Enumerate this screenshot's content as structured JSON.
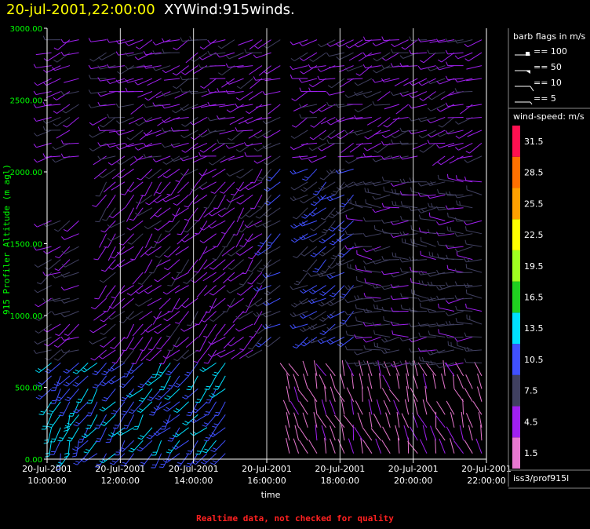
{
  "header": {
    "datetime": "20-jul-2001,22:00:00",
    "product": "XYWind:915winds."
  },
  "warning": "Realtime data, not checked for quality",
  "legend": {
    "barb_title": "barb flags in m/s",
    "barb_labels": [
      "== 100",
      "== 50",
      "== 10",
      "== 5"
    ],
    "speed_title": "wind-speed: m/s",
    "color_bins": [
      {
        "label": "1.5",
        "color": "#e878d0"
      },
      {
        "label": "4.5",
        "color": "#a020f0"
      },
      {
        "label": "7.5",
        "color": "#404060"
      },
      {
        "label": "10.5",
        "color": "#4050ff"
      },
      {
        "label": "13.5",
        "color": "#00e0ff"
      },
      {
        "label": "16.5",
        "color": "#20d020"
      },
      {
        "label": "19.5",
        "color": "#a0ff20"
      },
      {
        "label": "22.5",
        "color": "#ffff00"
      },
      {
        "label": "25.5",
        "color": "#ffa000"
      },
      {
        "label": "28.5",
        "color": "#ff7000"
      },
      {
        "label": "31.5",
        "color": "#ff1050"
      }
    ],
    "station": "iss3/prof915l"
  },
  "chart_data": {
    "type": "scatter",
    "subtype": "wind-barb time-height",
    "xlabel": "time",
    "ylabel": "915 Profiler Altitude (m agl)",
    "x_ticks": [
      {
        "date": "20-Jul-2001",
        "time": "10:00:00",
        "hour": 10
      },
      {
        "date": "20-Jul-2001",
        "time": "12:00:00",
        "hour": 12
      },
      {
        "date": "20-Jul-2001",
        "time": "14:00:00",
        "hour": 14
      },
      {
        "date": "20-Jul-2001",
        "time": "16:00:00",
        "hour": 16
      },
      {
        "date": "20-Jul-2001",
        "time": "18:00:00",
        "hour": 18
      },
      {
        "date": "20-Jul-2001",
        "time": "20:00:00",
        "hour": 20
      },
      {
        "date": "20-Jul-2001",
        "time": "22:00:00",
        "hour": 22
      }
    ],
    "xlim": [
      10,
      22
    ],
    "y_ticks": [
      "0.00",
      "500.00",
      "1000.00",
      "1500.00",
      "2000.00",
      "2500.00",
      "3000.00"
    ],
    "ylim": [
      0,
      3000
    ],
    "grid_x": true,
    "grid_y": false,
    "wind_field": [
      {
        "from_hour": 10.0,
        "to_hour": 15.0,
        "from_alt": 0,
        "to_alt": 700,
        "speed": 11,
        "dir": 220
      },
      {
        "from_hour": 10.0,
        "to_hour": 11.0,
        "from_alt": 0,
        "to_alt": 400,
        "speed": 13,
        "dir": 200
      },
      {
        "from_hour": 10.0,
        "to_hour": 11.0,
        "from_alt": 700,
        "to_alt": 1700,
        "speed": 6,
        "dir": 240
      },
      {
        "from_hour": 11.5,
        "to_hour": 16.0,
        "from_alt": 700,
        "to_alt": 2400,
        "speed": 5,
        "dir": 225
      },
      {
        "from_hour": 16.0,
        "to_hour": 18.5,
        "from_alt": 800,
        "to_alt": 2100,
        "speed": 9,
        "dir": 235
      },
      {
        "from_hour": 16.5,
        "to_hour": 22.0,
        "from_alt": 0,
        "to_alt": 600,
        "speed": 2,
        "dir": 340
      },
      {
        "from_hour": 18.5,
        "to_hour": 22.0,
        "from_alt": 600,
        "to_alt": 2000,
        "speed": 7,
        "dir": 270
      },
      {
        "from_hour": 10.0,
        "to_hour": 22.0,
        "from_alt": 2100,
        "to_alt": 3000,
        "speed": 5,
        "dir": 250
      }
    ]
  }
}
